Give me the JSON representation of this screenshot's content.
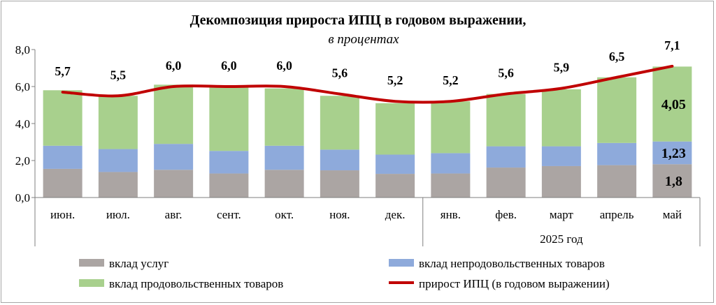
{
  "chart_data": {
    "type": "bar",
    "title": "Декомпозиция прироста ИПЦ в годовом выражении,",
    "subtitle": "в процентах",
    "categories": [
      "июн.",
      "июл.",
      "авг.",
      "сент.",
      "окт.",
      "ноя.",
      "дек.",
      "янв.",
      "фев.",
      "март",
      "апрель",
      "май"
    ],
    "year_group_label": "2025 год",
    "year_group_start_index": 7,
    "ylim": [
      0,
      8
    ],
    "yticks": [
      "0,0",
      "2,0",
      "4,0",
      "6,0",
      "8,0"
    ],
    "stacked": true,
    "series": [
      {
        "name": "вклад услуг",
        "color": "#aba5a3",
        "values": [
          1.55,
          1.38,
          1.5,
          1.3,
          1.5,
          1.47,
          1.28,
          1.3,
          1.62,
          1.7,
          1.75,
          1.8
        ]
      },
      {
        "name": "вклад непродовольственных товаров",
        "color": "#8eaadb",
        "values": [
          1.25,
          1.24,
          1.4,
          1.22,
          1.3,
          1.12,
          1.04,
          1.1,
          1.15,
          1.07,
          1.2,
          1.23
        ]
      },
      {
        "name": "вклад продовольственных товаров",
        "color": "#a8d08d",
        "values": [
          3.0,
          2.88,
          3.2,
          3.5,
          3.1,
          2.91,
          2.78,
          2.8,
          2.83,
          3.08,
          3.55,
          4.05
        ]
      }
    ],
    "line": {
      "name": "прирост ИПЦ (в годовом выражении)",
      "color": "#c00000",
      "values": [
        5.7,
        5.5,
        6.0,
        6.0,
        6.0,
        5.6,
        5.2,
        5.2,
        5.6,
        5.9,
        6.5,
        7.1
      ],
      "labels": [
        "5,7",
        "5,5",
        "6,0",
        "6,0",
        "6,0",
        "5,6",
        "5,2",
        "5,2",
        "5,6",
        "5,9",
        "6,5",
        "7,1"
      ]
    },
    "segment_labels": [
      {
        "index": 11,
        "series": 0,
        "text": "1,8"
      },
      {
        "index": 11,
        "series": 1,
        "text": "1,23"
      },
      {
        "index": 11,
        "series": 2,
        "text": "4,05"
      }
    ],
    "legend_position": "bottom",
    "grid": false
  }
}
